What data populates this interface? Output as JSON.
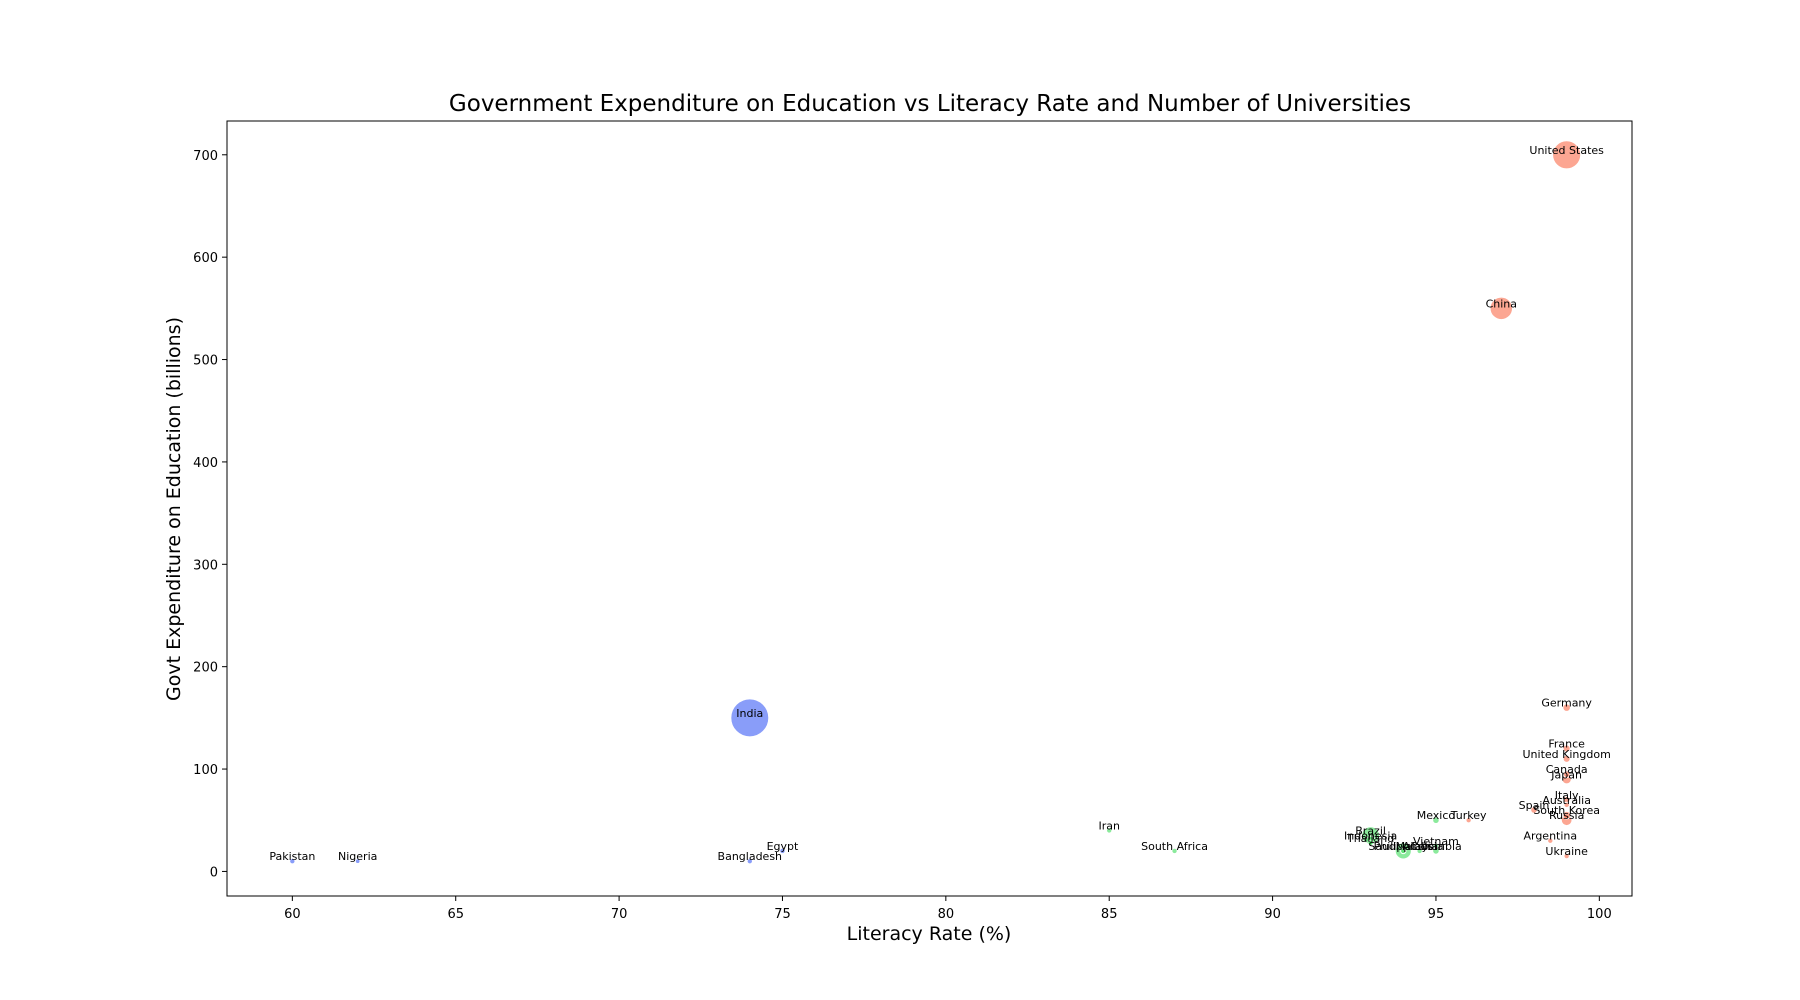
{
  "chart_data": {
    "type": "scatter",
    "title": "Government Expenditure on Education vs Literacy Rate and Number of Universities",
    "xlabel": "Literacy Rate (%)",
    "ylabel": "Govt Expenditure on Education (billions)",
    "xlim": [
      58,
      101
    ],
    "ylim": [
      -24,
      733
    ],
    "xticks": [
      "60",
      "65",
      "70",
      "75",
      "80",
      "85",
      "90",
      "95",
      "100"
    ],
    "yticks": [
      "0",
      "100",
      "200",
      "300",
      "400",
      "500",
      "600",
      "700"
    ],
    "grid": false,
    "marker_size_meaning": "number of universities",
    "colors": {
      "low": "#3b5cf5",
      "mid": "#3ddc5a",
      "high": "#fa6a4a"
    },
    "points": [
      {
        "label": "United States",
        "x": 99,
        "y": 700,
        "size": 5.5,
        "color": "high"
      },
      {
        "label": "China",
        "x": 97,
        "y": 550,
        "size": 3.5,
        "color": "high"
      },
      {
        "label": "India",
        "x": 74,
        "y": 150,
        "size": 10,
        "color": "low"
      },
      {
        "label": "Germany",
        "x": 99,
        "y": 160,
        "size": 0.4,
        "color": "high"
      },
      {
        "label": "France",
        "x": 99,
        "y": 120,
        "size": 0.35,
        "color": "high"
      },
      {
        "label": "United Kingdom",
        "x": 99,
        "y": 110,
        "size": 0.35,
        "color": "high"
      },
      {
        "label": "Canada",
        "x": 99,
        "y": 95,
        "size": 0.3,
        "color": "high"
      },
      {
        "label": "Japan",
        "x": 99,
        "y": 90,
        "size": 0.6,
        "color": "high"
      },
      {
        "label": "Italy",
        "x": 99,
        "y": 70,
        "size": 0.3,
        "color": "high"
      },
      {
        "label": "Australia",
        "x": 99,
        "y": 65,
        "size": 0.2,
        "color": "high"
      },
      {
        "label": "Spain",
        "x": 98,
        "y": 60,
        "size": 0.3,
        "color": "high"
      },
      {
        "label": "South Korea",
        "x": 99,
        "y": 55,
        "size": 0.4,
        "color": "high"
      },
      {
        "label": "Russia",
        "x": 99,
        "y": 50,
        "size": 0.8,
        "color": "high"
      },
      {
        "label": "Mexico",
        "x": 95,
        "y": 50,
        "size": 0.3,
        "color": "mid"
      },
      {
        "label": "Turkey",
        "x": 96,
        "y": 50,
        "size": 0.2,
        "color": "high"
      },
      {
        "label": "Iran",
        "x": 85,
        "y": 40,
        "size": 0.2,
        "color": "mid"
      },
      {
        "label": "Brazil",
        "x": 93,
        "y": 35,
        "size": 2.2,
        "color": "mid"
      },
      {
        "label": "Indonesia",
        "x": 93,
        "y": 30,
        "size": 0.6,
        "color": "mid"
      },
      {
        "label": "Argentina",
        "x": 98.5,
        "y": 30,
        "size": 0.2,
        "color": "high"
      },
      {
        "label": "Thailand",
        "x": 93,
        "y": 28,
        "size": 0.2,
        "color": "mid"
      },
      {
        "label": "Vietnam",
        "x": 95,
        "y": 25,
        "size": 0.2,
        "color": "mid"
      },
      {
        "label": "Egypt",
        "x": 75,
        "y": 20,
        "size": 0.2,
        "color": "low"
      },
      {
        "label": "South Africa",
        "x": 87,
        "y": 20,
        "size": 0.2,
        "color": "mid"
      },
      {
        "label": "Saudi Arabia",
        "x": 94,
        "y": 20,
        "size": 0.2,
        "color": "mid"
      },
      {
        "label": "Philippines",
        "x": 94,
        "y": 20,
        "size": 1.8,
        "color": "mid"
      },
      {
        "label": "Malaysia",
        "x": 94.5,
        "y": 20,
        "size": 0.2,
        "color": "mid"
      },
      {
        "label": "Colombia",
        "x": 95,
        "y": 20,
        "size": 0.3,
        "color": "mid"
      },
      {
        "label": "Ukraine",
        "x": 99,
        "y": 15,
        "size": 0.2,
        "color": "high"
      },
      {
        "label": "Pakistan",
        "x": 60,
        "y": 10,
        "size": 0.2,
        "color": "low"
      },
      {
        "label": "Nigeria",
        "x": 62,
        "y": 10,
        "size": 0.15,
        "color": "low"
      },
      {
        "label": "Bangladesh",
        "x": 74,
        "y": 10,
        "size": 0.2,
        "color": "low"
      }
    ]
  }
}
